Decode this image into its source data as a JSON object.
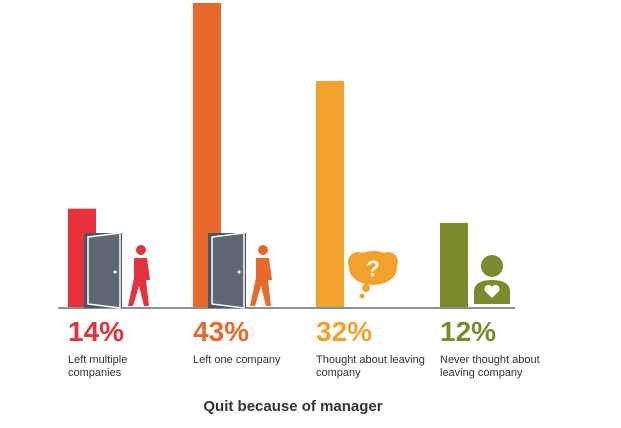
{
  "chart_data": {
    "type": "bar",
    "title": "Quit because of manager",
    "categories": [
      "Left multiple companies",
      "Left one company",
      "Thought about leaving company",
      "Never thought about leaving company"
    ],
    "values": [
      14,
      43,
      32,
      12
    ],
    "value_labels": [
      "14%",
      "43%",
      "32%",
      "12%"
    ],
    "colors": [
      "#e5323c",
      "#e8692b",
      "#f2a22c",
      "#7d8a2b"
    ]
  }
}
